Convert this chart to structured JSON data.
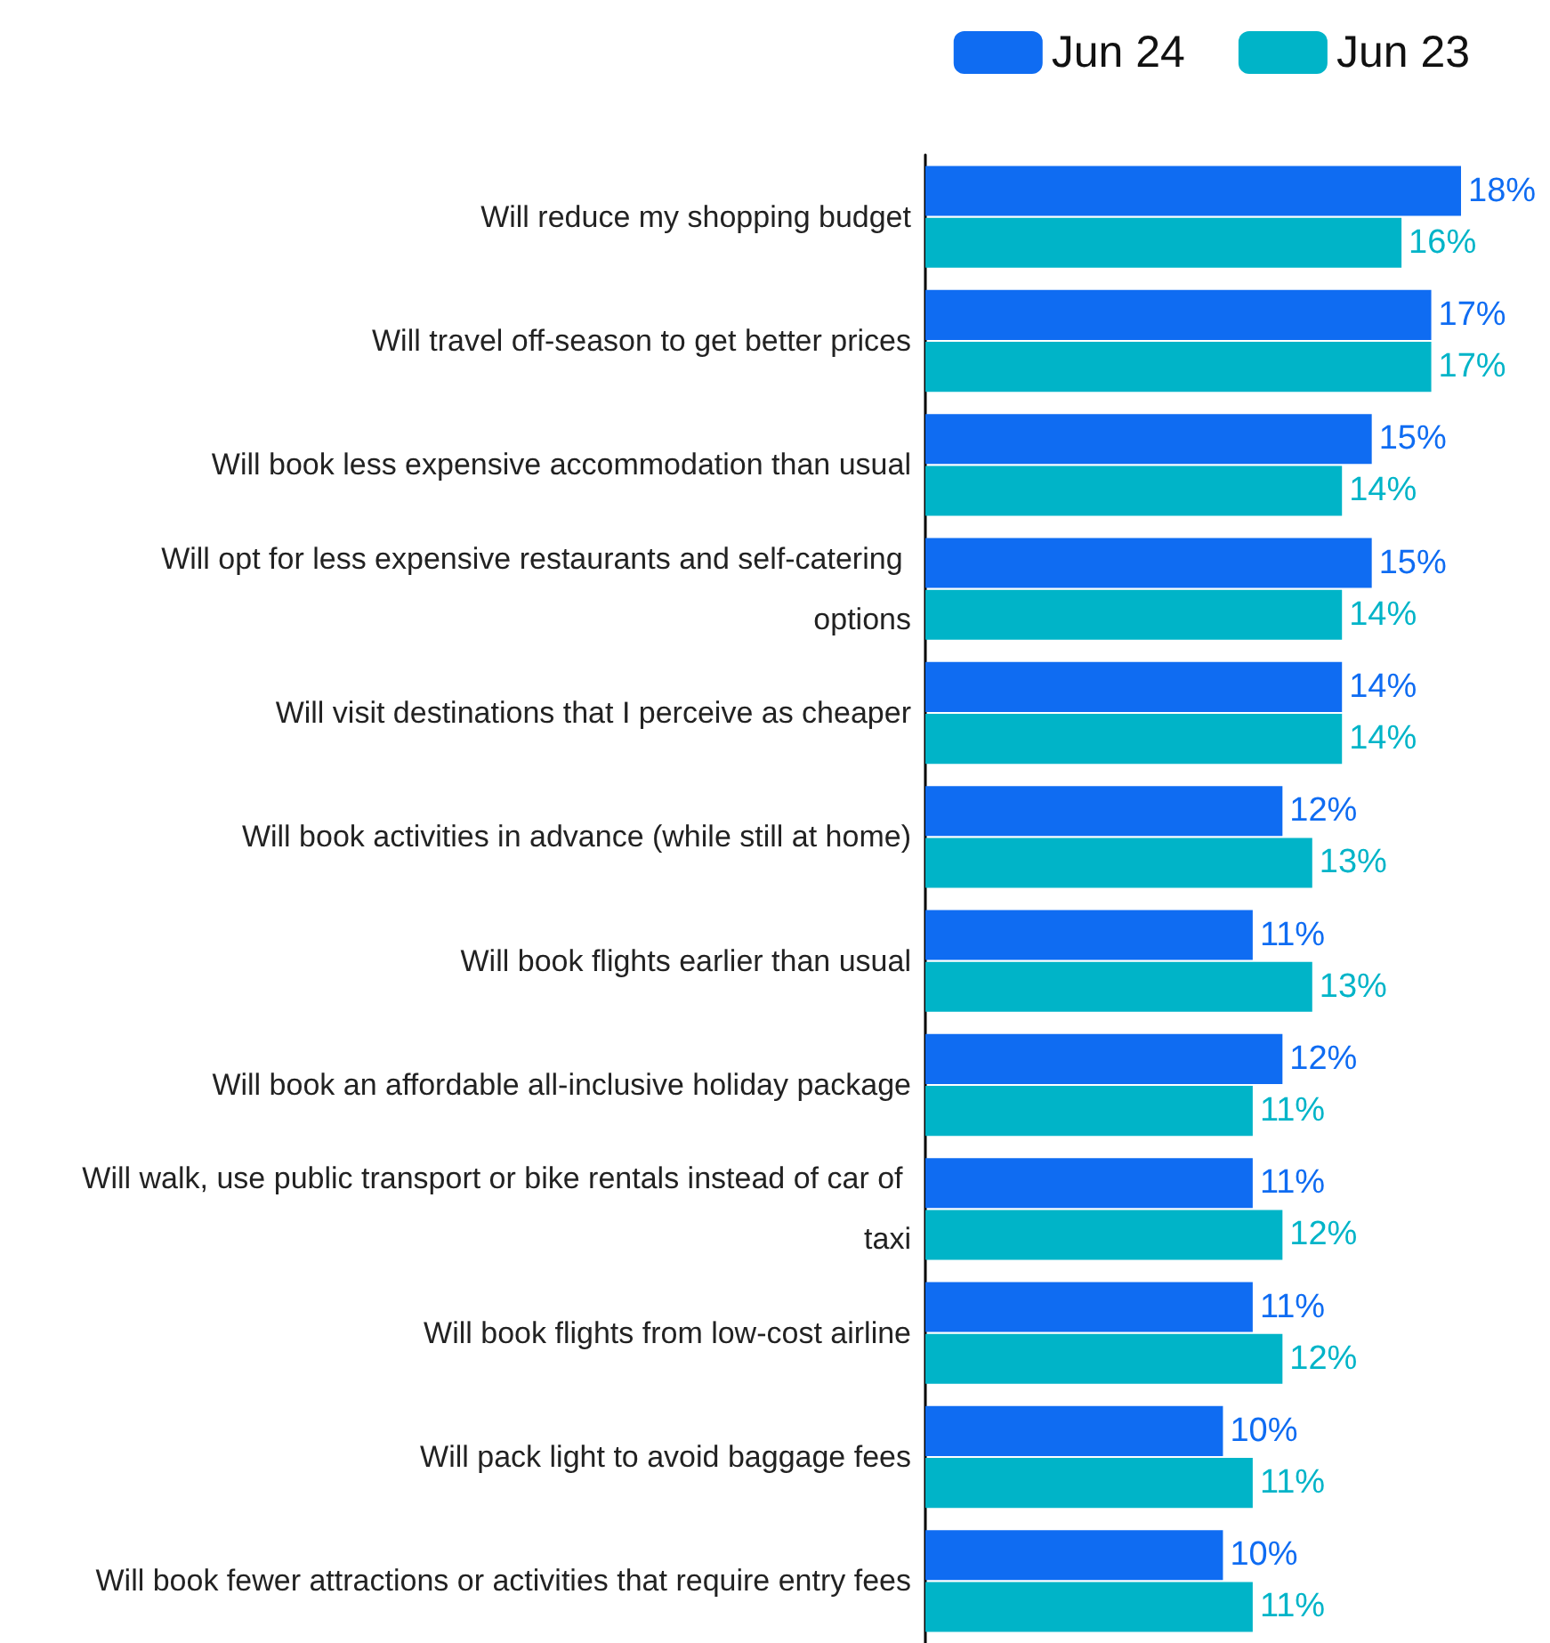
{
  "chart_data": {
    "type": "bar",
    "orientation": "horizontal",
    "tick_labels": "y",
    "grid": false,
    "legend": "top right",
    "categories": [
      "Will reduce my shopping budget",
      "Will travel off-season to get better prices",
      "Will book less expensive accommodation than usual",
      "Will opt for less expensive restaurants and self-catering options",
      "Will visit destinations that I perceive as cheaper",
      "Will book activities in advance (while still at home)",
      "Will book flights earlier than usual",
      "Will book an affordable all-inclusive holiday package",
      "Will walk, use public transport or bike rentals instead of car of taxi",
      "Will book flights from low-cost airline",
      "Will pack light to avoid baggage fees",
      "Will book fewer attractions or activities that require entry fees"
    ],
    "series": [
      {
        "name": "Jun 24",
        "color": "#0f6cf2",
        "values": [
          18,
          17,
          15,
          15,
          14,
          12,
          11,
          12,
          11,
          11,
          10,
          10
        ],
        "value_labels": [
          "18%",
          "17%",
          "15%",
          "15%",
          "14%",
          "12%",
          "11%",
          "12%",
          "11%",
          "11%",
          "10%",
          "10%"
        ]
      },
      {
        "name": "Jun 23",
        "color": "#00b4c8",
        "values": [
          16,
          17,
          14,
          14,
          14,
          13,
          13,
          11,
          12,
          12,
          11,
          11
        ],
        "value_labels": [
          "16%",
          "17%",
          "14%",
          "14%",
          "14%",
          "13%",
          "13%",
          "11%",
          "12%",
          "12%",
          "11%",
          "11%"
        ]
      }
    ]
  }
}
